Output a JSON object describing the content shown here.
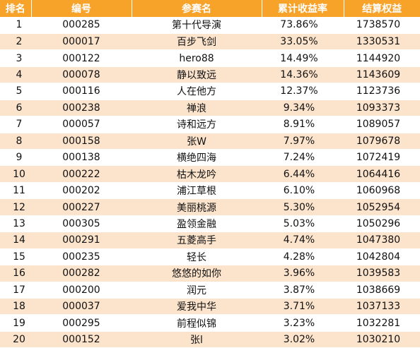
{
  "columns": {
    "rank": "排名",
    "code": "编号",
    "name": "参赛名",
    "return": "累计收益率",
    "equity": "结算权益"
  },
  "rows": [
    {
      "rank": "1",
      "code": "000285",
      "name": "第十代导演",
      "return": "73.86%",
      "equity": "1738570"
    },
    {
      "rank": "2",
      "code": "000017",
      "name": "百步飞剑",
      "return": "33.05%",
      "equity": "1330531"
    },
    {
      "rank": "3",
      "code": "000122",
      "name": "hero88",
      "return": "14.49%",
      "equity": "1144920"
    },
    {
      "rank": "4",
      "code": "000078",
      "name": "静以致远",
      "return": "14.36%",
      "equity": "1143609"
    },
    {
      "rank": "5",
      "code": "000116",
      "name": "人在他方",
      "return": "12.37%",
      "equity": "1123736"
    },
    {
      "rank": "6",
      "code": "000238",
      "name": "禅浪",
      "return": "9.34%",
      "equity": "1093373"
    },
    {
      "rank": "7",
      "code": "000057",
      "name": "诗和远方",
      "return": "8.91%",
      "equity": "1089057"
    },
    {
      "rank": "8",
      "code": "000158",
      "name": "张W",
      "return": "7.97%",
      "equity": "1079678"
    },
    {
      "rank": "9",
      "code": "000138",
      "name": "横绝四海",
      "return": "7.24%",
      "equity": "1072419"
    },
    {
      "rank": "10",
      "code": "000222",
      "name": "枯木龙吟",
      "return": "6.44%",
      "equity": "1064416"
    },
    {
      "rank": "11",
      "code": "000202",
      "name": "浦江草根",
      "return": "6.10%",
      "equity": "1060968"
    },
    {
      "rank": "12",
      "code": "000227",
      "name": "美丽桃源",
      "return": "5.30%",
      "equity": "1052954"
    },
    {
      "rank": "13",
      "code": "000305",
      "name": "盈领金融",
      "return": "5.03%",
      "equity": "1050296"
    },
    {
      "rank": "14",
      "code": "000291",
      "name": "五菱高手",
      "return": "4.74%",
      "equity": "1047380"
    },
    {
      "rank": "15",
      "code": "000235",
      "name": "轻长",
      "return": "4.28%",
      "equity": "1042804"
    },
    {
      "rank": "16",
      "code": "000282",
      "name": "悠悠的如你",
      "return": "3.96%",
      "equity": "1039583"
    },
    {
      "rank": "17",
      "code": "000200",
      "name": "润元",
      "return": "3.87%",
      "equity": "1038669"
    },
    {
      "rank": "18",
      "code": "000037",
      "name": "爱我中华",
      "return": "3.71%",
      "equity": "1037133"
    },
    {
      "rank": "19",
      "code": "000295",
      "name": "前程似锦",
      "return": "3.23%",
      "equity": "1032281"
    },
    {
      "rank": "20",
      "code": "000152",
      "name": "张l",
      "return": "3.02%",
      "equity": "1030210"
    }
  ],
  "colors": {
    "header_bg": "#f7a229",
    "header_text": "#ffffff",
    "row_alt_bg": "#fbe3cc",
    "row_bg": "#ffffff"
  }
}
